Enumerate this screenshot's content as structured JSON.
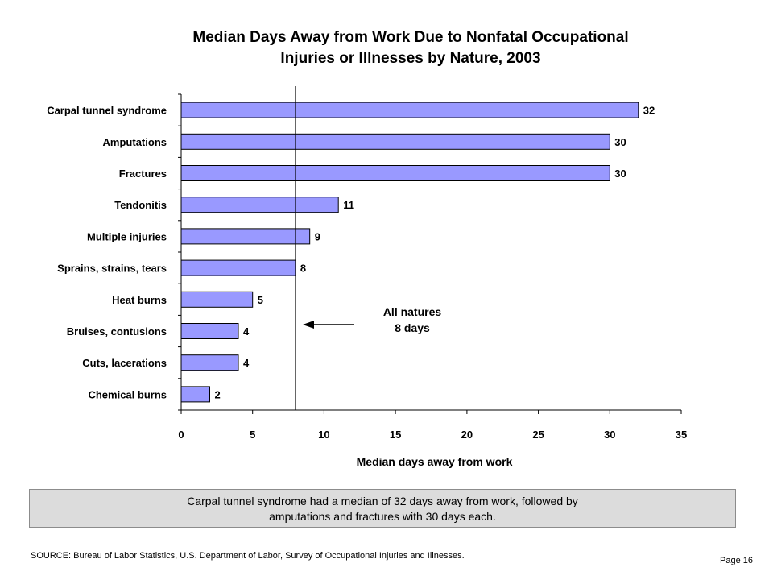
{
  "chart_data": {
    "type": "bar",
    "orientation": "horizontal",
    "title_lines": [
      "Median Days Away from Work Due to Nonfatal Occupational",
      "Injuries or Illnesses by Nature, 2003"
    ],
    "xlabel": "Median days away from work",
    "ylabel": "",
    "categories": [
      "Carpal tunnel syndrome",
      "Amputations",
      "Fractures",
      "Tendonitis",
      "Multiple injuries",
      "Sprains, strains, tears",
      "Heat burns",
      "Bruises, contusions",
      "Cuts, lacerations",
      "Chemical burns"
    ],
    "values": [
      32,
      30,
      30,
      11,
      9,
      8,
      5,
      4,
      4,
      2
    ],
    "xlim": [
      0,
      35
    ],
    "xticks": [
      0,
      5,
      10,
      15,
      20,
      25,
      30,
      35
    ],
    "reference_line": {
      "value": 8,
      "label_lines": [
        "All natures",
        "8 days"
      ]
    },
    "grid": false,
    "legend": "none",
    "colors": {
      "bar_fill": "#9999ff",
      "bar_stroke": "#000000"
    }
  },
  "summary_lines": [
    "Carpal tunnel syndrome had a median of 32 days away from work, followed by",
    "amputations and fractures with 30 days each."
  ],
  "source": "SOURCE:   Bureau of Labor Statistics, U.S. Department of Labor, Survey of Occupational Injuries and Illnesses.",
  "page_label": "Page 16"
}
